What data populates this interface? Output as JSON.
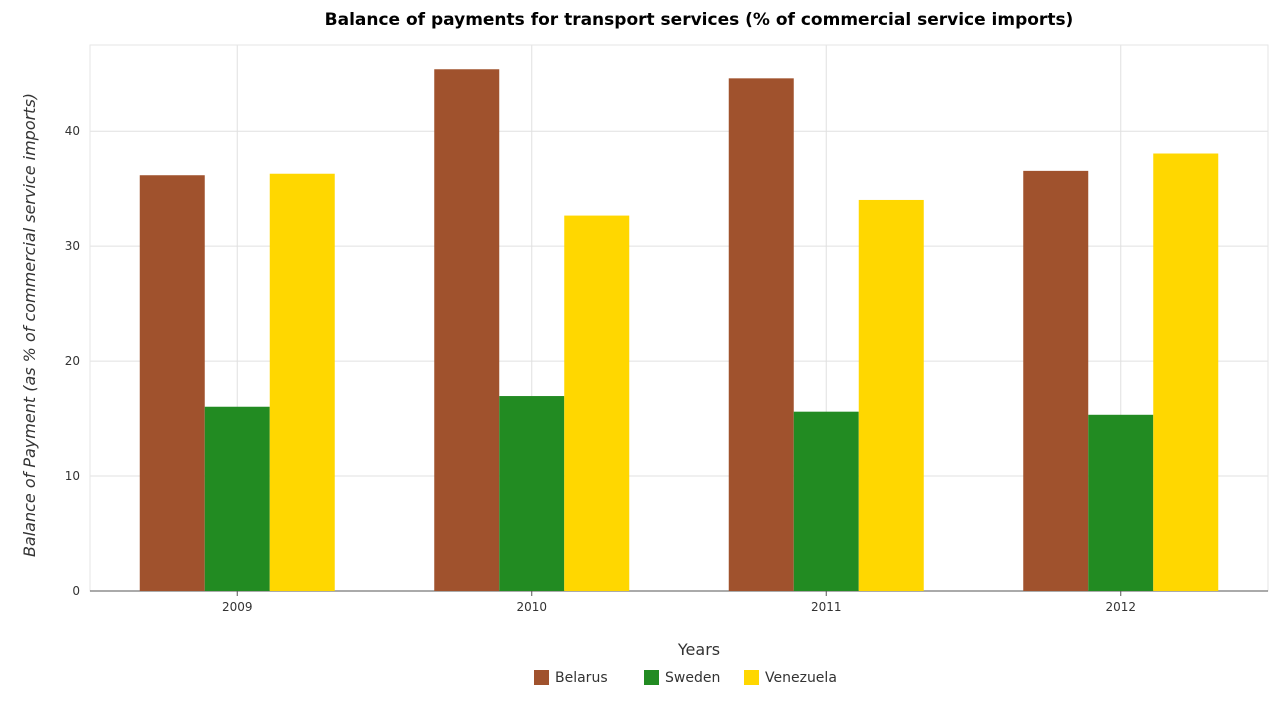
{
  "chart_data": {
    "type": "bar",
    "title": "Balance of payments for transport services (% of commercial service imports)",
    "xlabel": "Years",
    "ylabel": "Balance of Payment (as % of commercial service imports)",
    "categories": [
      "2009",
      "2010",
      "2011",
      "2012"
    ],
    "ylim": [
      0,
      47.5
    ],
    "yticks": [
      0,
      10,
      20,
      30,
      40
    ],
    "grid": true,
    "legend_position": "bottom-center",
    "series": [
      {
        "name": "Belarus",
        "color": "#a0522d",
        "values": [
          36.17,
          45.39,
          44.6,
          36.55
        ]
      },
      {
        "name": "Sweden",
        "color": "#228b22",
        "values": [
          16.03,
          16.96,
          15.6,
          15.33
        ]
      },
      {
        "name": "Venezuela",
        "color": "#ffd700",
        "values": [
          36.3,
          32.66,
          34.02,
          38.06
        ]
      }
    ]
  }
}
